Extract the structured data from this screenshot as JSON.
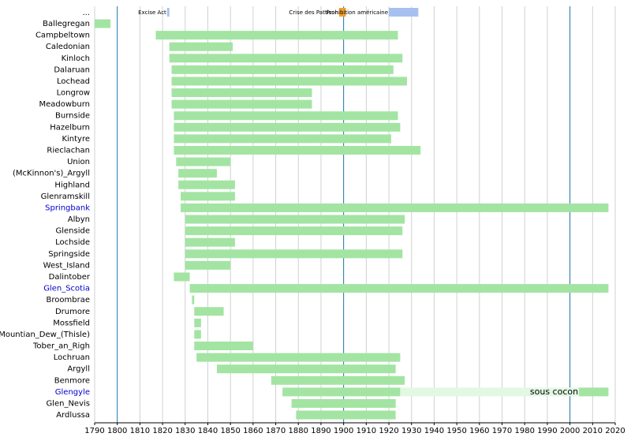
{
  "chart_data": {
    "type": "timeline",
    "xlim": [
      1790,
      2020
    ],
    "xticks": [
      1790,
      1800,
      1810,
      1820,
      1830,
      1840,
      1850,
      1860,
      1870,
      1880,
      1890,
      1900,
      1910,
      1920,
      1930,
      1940,
      1950,
      1960,
      1970,
      1980,
      1990,
      2000,
      2010,
      2020
    ],
    "grid": true,
    "color": "#a3e4a3",
    "events_label": "...",
    "events": [
      {
        "label": "Excise Act",
        "start": 1822,
        "end": 1823,
        "color": "#a8c0f0"
      },
      {
        "label": "Crise des Pattison",
        "start": 1898,
        "end": 1901,
        "color": "#f0a030"
      },
      {
        "label": "Prohibition américaine",
        "start": 1920,
        "end": 1933,
        "color": "#a8c0f0"
      }
    ],
    "rows": [
      {
        "label": "Ballegregan",
        "periods": [
          {
            "start": 1790,
            "end": 1797
          }
        ]
      },
      {
        "label": "Campbeltown",
        "periods": [
          {
            "start": 1817,
            "end": 1924
          }
        ]
      },
      {
        "label": "Caledonian",
        "periods": [
          {
            "start": 1823,
            "end": 1851
          }
        ]
      },
      {
        "label": "Kinloch",
        "periods": [
          {
            "start": 1823,
            "end": 1926
          }
        ]
      },
      {
        "label": "Dalaruan",
        "periods": [
          {
            "start": 1824,
            "end": 1922
          }
        ]
      },
      {
        "label": "Lochead",
        "periods": [
          {
            "start": 1824,
            "end": 1928
          }
        ]
      },
      {
        "label": "Longrow",
        "periods": [
          {
            "start": 1824,
            "end": 1886
          }
        ]
      },
      {
        "label": "Meadowburn",
        "periods": [
          {
            "start": 1824,
            "end": 1886
          }
        ]
      },
      {
        "label": "Burnside",
        "periods": [
          {
            "start": 1825,
            "end": 1924
          }
        ]
      },
      {
        "label": "Hazelburn",
        "periods": [
          {
            "start": 1825,
            "end": 1925
          }
        ]
      },
      {
        "label": "Kintyre",
        "periods": [
          {
            "start": 1825,
            "end": 1921
          }
        ]
      },
      {
        "label": "Rieclachan",
        "periods": [
          {
            "start": 1825,
            "end": 1934
          }
        ]
      },
      {
        "label": "Union",
        "periods": [
          {
            "start": 1826,
            "end": 1850
          }
        ]
      },
      {
        "label": "(McKinnon's)_Argyll",
        "periods": [
          {
            "start": 1827,
            "end": 1844
          }
        ]
      },
      {
        "label": "Highland",
        "periods": [
          {
            "start": 1827,
            "end": 1852
          }
        ]
      },
      {
        "label": "Glenramskill",
        "periods": [
          {
            "start": 1828,
            "end": 1852
          }
        ]
      },
      {
        "label": "Springbank",
        "label_color": "#0000cc",
        "periods": [
          {
            "start": 1828,
            "end": 2017
          }
        ]
      },
      {
        "label": "Albyn",
        "periods": [
          {
            "start": 1830,
            "end": 1927
          }
        ]
      },
      {
        "label": "Glenside",
        "periods": [
          {
            "start": 1830,
            "end": 1926
          }
        ]
      },
      {
        "label": "Lochside",
        "periods": [
          {
            "start": 1830,
            "end": 1852
          }
        ]
      },
      {
        "label": "Springside",
        "periods": [
          {
            "start": 1830,
            "end": 1926
          }
        ]
      },
      {
        "label": "West_Island",
        "periods": [
          {
            "start": 1830,
            "end": 1850
          }
        ]
      },
      {
        "label": "Dalintober",
        "periods": [
          {
            "start": 1825,
            "end": 1832
          }
        ]
      },
      {
        "label": "Glen_Scotia",
        "label_color": "#0000cc",
        "periods": [
          {
            "start": 1832,
            "end": 2017
          }
        ]
      },
      {
        "label": "Broombrae",
        "periods": [
          {
            "start": 1833,
            "end": 1834
          }
        ]
      },
      {
        "label": "Drumore",
        "periods": [
          {
            "start": 1834,
            "end": 1847
          }
        ]
      },
      {
        "label": "Mossfield",
        "periods": [
          {
            "start": 1834,
            "end": 1837
          }
        ]
      },
      {
        "label": "Mountian_Dew_(Thisle)",
        "periods": [
          {
            "start": 1834,
            "end": 1837
          }
        ]
      },
      {
        "label": "Tober_an_Righ",
        "periods": [
          {
            "start": 1834,
            "end": 1860
          }
        ]
      },
      {
        "label": "Lochruan",
        "periods": [
          {
            "start": 1835,
            "end": 1925
          }
        ]
      },
      {
        "label": "Argyll",
        "periods": [
          {
            "start": 1844,
            "end": 1923
          }
        ]
      },
      {
        "label": "Benmore",
        "periods": [
          {
            "start": 1868,
            "end": 1927
          }
        ]
      },
      {
        "label": "Glengyle",
        "label_color": "#0000cc",
        "periods": [
          {
            "start": 1873,
            "end": 1925
          },
          {
            "start": 1925,
            "end": 2004,
            "label": "sous cocon",
            "color": "#e2f8e2"
          },
          {
            "start": 2004,
            "end": 2017
          }
        ]
      },
      {
        "label": "Glen_Nevis",
        "periods": [
          {
            "start": 1877,
            "end": 1923
          }
        ]
      },
      {
        "label": "Ardlussa",
        "periods": [
          {
            "start": 1879,
            "end": 1923
          }
        ]
      }
    ]
  }
}
